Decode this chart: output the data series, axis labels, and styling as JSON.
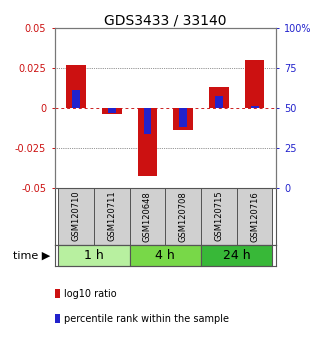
{
  "title": "GDS3433 / 33140",
  "samples": [
    "GSM120710",
    "GSM120711",
    "GSM120648",
    "GSM120708",
    "GSM120715",
    "GSM120716"
  ],
  "log10_ratio": [
    0.027,
    -0.004,
    -0.043,
    -0.014,
    0.013,
    0.03
  ],
  "percentile_rank": [
    0.615,
    0.47,
    0.335,
    0.38,
    0.575,
    0.51
  ],
  "groups": [
    {
      "label": "1 h",
      "samples": [
        0,
        1
      ],
      "color": "#b8f0a0"
    },
    {
      "label": "4 h",
      "samples": [
        2,
        3
      ],
      "color": "#78d848"
    },
    {
      "label": "24 h",
      "samples": [
        4,
        5
      ],
      "color": "#38b838"
    }
  ],
  "ylim": [
    -0.05,
    0.05
  ],
  "yticks": [
    -0.05,
    -0.025,
    0,
    0.025,
    0.05
  ],
  "ytick_labels": [
    "-0.05",
    "-0.025",
    "0",
    "0.025",
    "0.05"
  ],
  "y2tick_labels": [
    "0",
    "25",
    "50",
    "75",
    "100%"
  ],
  "red_color": "#cc1111",
  "blue_color": "#2222cc",
  "sample_box_color": "#d0d0d0",
  "sample_box_edge": "#555555",
  "grid_color": "#333333",
  "zero_line_color": "#cc2222",
  "background_color": "#ffffff",
  "title_fontsize": 10,
  "tick_fontsize": 7,
  "sample_fontsize": 6,
  "legend_fontsize": 7,
  "time_fontsize": 8,
  "group_label_fontsize": 9
}
